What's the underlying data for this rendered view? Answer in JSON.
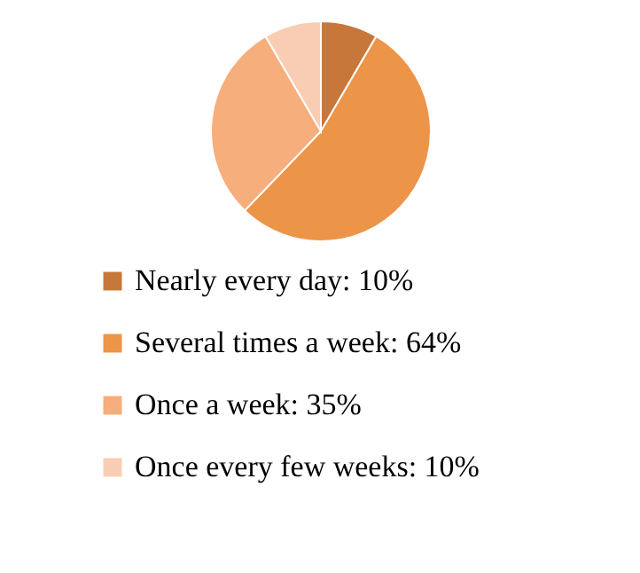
{
  "chart_data": {
    "type": "pie",
    "categories": [
      "Nearly every day: 10%",
      "Several times a week: 64%",
      "Once a week: 35%",
      "Once every few weeks: 10%"
    ],
    "values": [
      10,
      64,
      35,
      10
    ],
    "colors": [
      "#c8773b",
      "#ec9448",
      "#f6ae7c",
      "#f9cdb3"
    ],
    "legend": "bottom"
  }
}
